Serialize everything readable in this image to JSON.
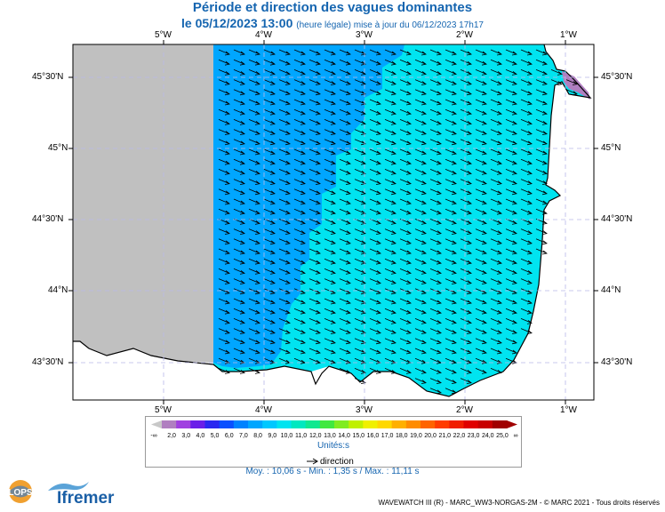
{
  "header": {
    "title": "Période et direction des vagues dominantes",
    "date": "le 05/12/2023 13:00",
    "update_note": "(heure légale) mise à jour du 06/12/2023 17h17"
  },
  "map": {
    "lon_labels": [
      "5°W",
      "4°W",
      "3°W",
      "2°W",
      "1°W"
    ],
    "lat_labels": [
      "45°30'N",
      "45°N",
      "44°30'N",
      "44°N",
      "43°30'N"
    ],
    "wave_direction": "south-east",
    "land_color": "#ffffff",
    "no_data_color": "#c0c0c0"
  },
  "legend": {
    "start_symbol": "-∞",
    "end_symbol": "∞",
    "ticks": [
      "2,0",
      "3,0",
      "4,0",
      "5,0",
      "6,0",
      "7,0",
      "8,0",
      "9,0",
      "10,0",
      "11,0",
      "12,0",
      "13,0",
      "14,0",
      "15,0",
      "16,0",
      "17,0",
      "18,0",
      "19,0",
      "20,0",
      "21,0",
      "22,0",
      "23,0",
      "24,0",
      "25,0"
    ],
    "colors": [
      "#b07fc0",
      "#a040e0",
      "#6a1ee8",
      "#2a28f0",
      "#0a50ff",
      "#0082ff",
      "#00a6ff",
      "#00c8ff",
      "#00e4f0",
      "#00e8c0",
      "#10e890",
      "#40e840",
      "#80ec20",
      "#c0f000",
      "#f0f000",
      "#ffd800",
      "#ffb000",
      "#ff8c00",
      "#ff6400",
      "#ff3c00",
      "#f01e00",
      "#e00000",
      "#c80000",
      "#a00000"
    ],
    "units": "Unités:s",
    "direction_label": "direction"
  },
  "stats": "Moy. : 10,06 s   -   Min. : 1,35 s / Max. : 11,11 s",
  "logos": {
    "lops": "LOPS",
    "ifremer": "Ifremer"
  },
  "copyright": "WAVEWATCH III (R) - MARC_WW3-NORGAS-2M - © MARC 2021 - Tous droits réservés"
}
